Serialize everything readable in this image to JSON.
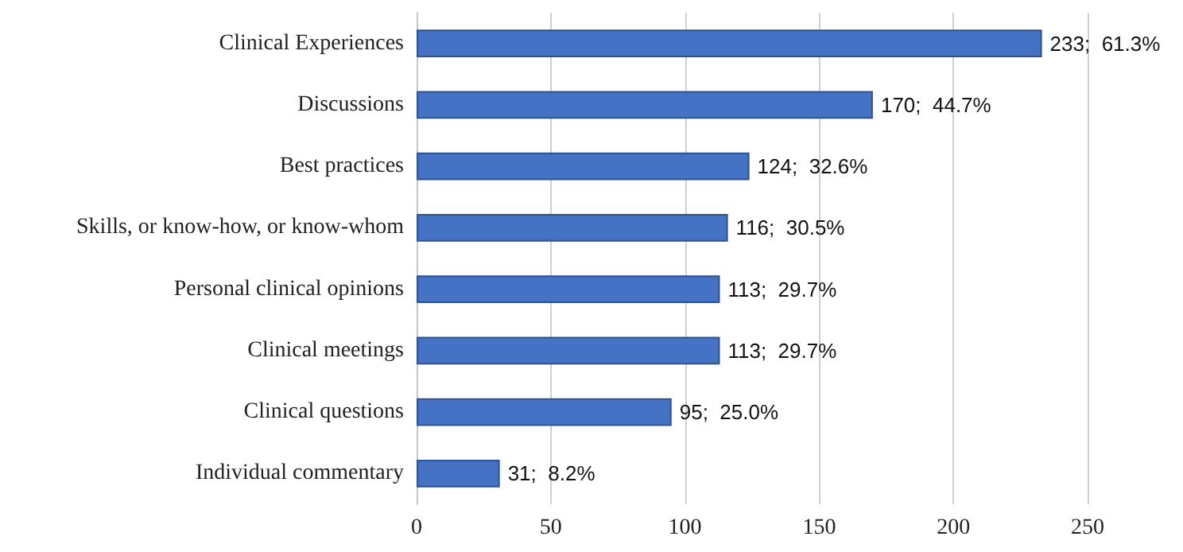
{
  "chart_data": {
    "type": "bar",
    "orientation": "horizontal",
    "categories": [
      "Clinical Experiences",
      "Discussions",
      "Best practices",
      "Skills, or know-how, or know-whom",
      "Personal clinical opinions",
      "Clinical meetings",
      "Clinical questions",
      "Individual commentary"
    ],
    "values": [
      233,
      170,
      124,
      116,
      113,
      113,
      95,
      31
    ],
    "value_labels": [
      "233;  61.3%",
      "170;  44.7%",
      "124;  32.6%",
      "116;  30.5%",
      "113;  29.7%",
      "113;  29.7%",
      "95;  25.0%",
      "31;  8.2%"
    ],
    "color": "#4472c4",
    "xlim": [
      0,
      250
    ],
    "xticks": [
      0,
      50,
      100,
      150,
      200,
      250
    ],
    "grid": "x"
  }
}
